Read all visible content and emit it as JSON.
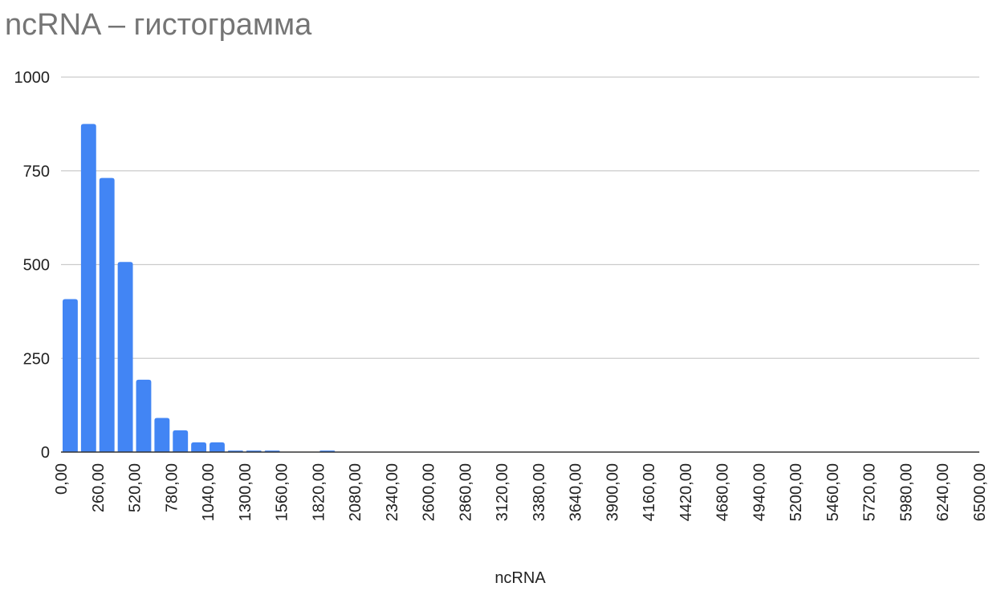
{
  "chart_data": {
    "type": "bar",
    "title": "ncRNA – гистограмма",
    "xlabel": "ncRNA",
    "ylabel": "",
    "ylim": [
      0,
      1000
    ],
    "yticks": [
      "0",
      "250",
      "500",
      "750",
      "1000"
    ],
    "ytick_values": [
      0,
      250,
      500,
      750,
      1000
    ],
    "xlim": [
      0,
      6500
    ],
    "bin_width": 130,
    "x_ticks": [
      "0,00",
      "260,00",
      "520,00",
      "780,00",
      "1040,00",
      "1300,00",
      "1560,00",
      "1820,00",
      "2080,00",
      "2340,00",
      "2600,00",
      "2860,00",
      "3120,00",
      "3380,00",
      "3640,00",
      "3900,00",
      "4160,00",
      "4420,00",
      "4680,00",
      "4940,00",
      "5200,00",
      "5460,00",
      "5720,00",
      "5980,00",
      "6240,00",
      "6500,00"
    ],
    "x_tick_values": [
      0,
      260,
      520,
      780,
      1040,
      1300,
      1560,
      1820,
      2080,
      2340,
      2600,
      2860,
      3120,
      3380,
      3640,
      3900,
      4160,
      4420,
      4680,
      4940,
      5200,
      5460,
      5720,
      5980,
      6240,
      6500
    ],
    "bins": [
      {
        "x": 0,
        "value": 408
      },
      {
        "x": 130,
        "value": 875
      },
      {
        "x": 260,
        "value": 731
      },
      {
        "x": 390,
        "value": 507
      },
      {
        "x": 520,
        "value": 193
      },
      {
        "x": 650,
        "value": 91
      },
      {
        "x": 780,
        "value": 58
      },
      {
        "x": 910,
        "value": 26
      },
      {
        "x": 1040,
        "value": 26
      },
      {
        "x": 1170,
        "value": 4
      },
      {
        "x": 1300,
        "value": 4
      },
      {
        "x": 1430,
        "value": 4
      },
      {
        "x": 1560,
        "value": 0
      },
      {
        "x": 1690,
        "value": 0
      },
      {
        "x": 1820,
        "value": 4
      }
    ],
    "grid": true,
    "legend": "none",
    "colors": {
      "bar": "#4285f4",
      "grid": "#cccccc",
      "axis": "#333333",
      "title": "#757575",
      "text": "#222222"
    }
  }
}
